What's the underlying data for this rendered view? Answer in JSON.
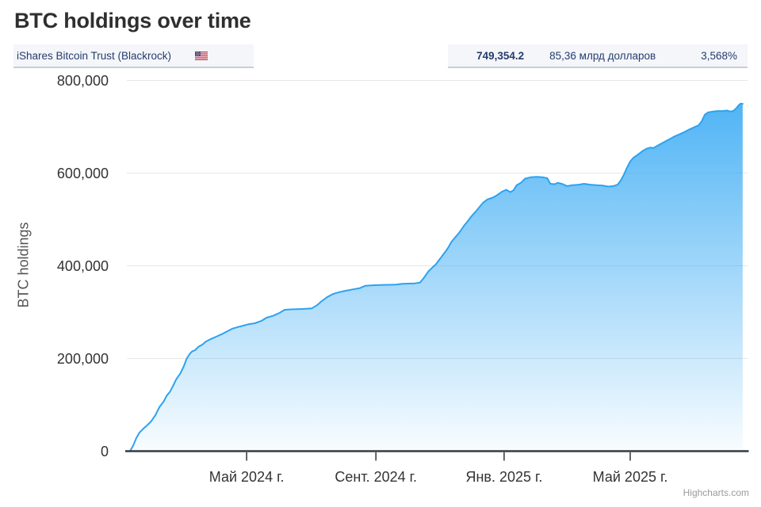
{
  "title": "BTC holdings over time",
  "header": {
    "fund_label": "iShares Bitcoin Trust (Blackrock)",
    "flag_icon": "us-flag-icon",
    "btc_value": "749,354.2",
    "aum_value": "85,36 млрд долларов",
    "pct_value": "3,568%"
  },
  "credit": "Highcharts.com",
  "colors": {
    "accent_line": "#2da2f0",
    "fill_top": "rgba(47,166,243,0.90)",
    "fill_bottom": "rgba(47,166,243,0.03)",
    "grid": "#e7e7e7",
    "axis": "#37393d",
    "tick": "#333333",
    "navy_text": "#263c6e"
  },
  "chart_data": {
    "type": "area",
    "title": "BTC holdings over time",
    "xlabel": "",
    "ylabel": "BTC holdings",
    "ylim": [
      0,
      800000
    ],
    "grid": true,
    "legend": false,
    "y_ticks": [
      {
        "value": 0,
        "label": "0"
      },
      {
        "value": 200000,
        "label": "200,000"
      },
      {
        "value": 400000,
        "label": "400,000"
      },
      {
        "value": 600000,
        "label": "600,000"
      },
      {
        "value": 800000,
        "label": "800,000"
      }
    ],
    "x_range": [
      "2024-01-08",
      "2025-08-21"
    ],
    "x_ticks": [
      {
        "date": "2024-05-01",
        "label": "Май 2024 г."
      },
      {
        "date": "2024-09-01",
        "label": "Сент. 2024 г."
      },
      {
        "date": "2025-01-01",
        "label": "Янв. 2025 г."
      },
      {
        "date": "2025-05-01",
        "label": "Май 2025 г."
      }
    ],
    "series": [
      {
        "name": "iShares Bitcoin Trust (Blackrock)",
        "last_value": 749354.2,
        "points": [
          [
            "2024-01-11",
            0
          ],
          [
            "2024-01-14",
            12000
          ],
          [
            "2024-01-17",
            28000
          ],
          [
            "2024-01-20",
            40000
          ],
          [
            "2024-01-24",
            49000
          ],
          [
            "2024-01-27",
            55000
          ],
          [
            "2024-01-31",
            64000
          ],
          [
            "2024-02-04",
            77000
          ],
          [
            "2024-02-08",
            95000
          ],
          [
            "2024-02-12",
            107000
          ],
          [
            "2024-02-15",
            120000
          ],
          [
            "2024-02-18",
            128000
          ],
          [
            "2024-02-21",
            141000
          ],
          [
            "2024-02-24",
            155000
          ],
          [
            "2024-02-28",
            168000
          ],
          [
            "2024-03-02",
            182000
          ],
          [
            "2024-03-05",
            200000
          ],
          [
            "2024-03-08",
            210000
          ],
          [
            "2024-03-10",
            215000
          ],
          [
            "2024-03-13",
            218000
          ],
          [
            "2024-03-16",
            225000
          ],
          [
            "2024-03-20",
            230000
          ],
          [
            "2024-03-23",
            236000
          ],
          [
            "2024-03-28",
            242000
          ],
          [
            "2024-04-02",
            247000
          ],
          [
            "2024-04-07",
            252000
          ],
          [
            "2024-04-12",
            258000
          ],
          [
            "2024-04-17",
            264000
          ],
          [
            "2024-04-23",
            268000
          ],
          [
            "2024-04-28",
            271000
          ],
          [
            "2024-05-03",
            274000
          ],
          [
            "2024-05-09",
            276000
          ],
          [
            "2024-05-15",
            281000
          ],
          [
            "2024-05-20",
            288000
          ],
          [
            "2024-05-26",
            292000
          ],
          [
            "2024-06-01",
            298000
          ],
          [
            "2024-06-06",
            305000
          ],
          [
            "2024-06-12",
            306000
          ],
          [
            "2024-06-18",
            306500
          ],
          [
            "2024-06-25",
            307000
          ],
          [
            "2024-07-02",
            308000
          ],
          [
            "2024-07-07",
            315000
          ],
          [
            "2024-07-11",
            323000
          ],
          [
            "2024-07-17",
            333000
          ],
          [
            "2024-07-22",
            339000
          ],
          [
            "2024-07-28",
            343000
          ],
          [
            "2024-08-03",
            346000
          ],
          [
            "2024-08-10",
            349000
          ],
          [
            "2024-08-17",
            352000
          ],
          [
            "2024-08-22",
            357000
          ],
          [
            "2024-08-29",
            358000
          ],
          [
            "2024-09-05",
            358500
          ],
          [
            "2024-09-13",
            359000
          ],
          [
            "2024-09-20",
            359500
          ],
          [
            "2024-09-26",
            361000
          ],
          [
            "2024-10-02",
            361500
          ],
          [
            "2024-10-08",
            362000
          ],
          [
            "2024-10-13",
            364000
          ],
          [
            "2024-10-17",
            375000
          ],
          [
            "2024-10-21",
            388000
          ],
          [
            "2024-10-25",
            397000
          ],
          [
            "2024-10-28",
            403000
          ],
          [
            "2024-10-31",
            412000
          ],
          [
            "2024-11-03",
            421000
          ],
          [
            "2024-11-06",
            430000
          ],
          [
            "2024-11-09",
            440000
          ],
          [
            "2024-11-12",
            452000
          ],
          [
            "2024-11-15",
            460000
          ],
          [
            "2024-11-18",
            468000
          ],
          [
            "2024-11-21",
            477000
          ],
          [
            "2024-11-24",
            487000
          ],
          [
            "2024-11-27",
            495000
          ],
          [
            "2024-12-01",
            507000
          ],
          [
            "2024-12-05",
            517000
          ],
          [
            "2024-12-09",
            528000
          ],
          [
            "2024-12-12",
            536000
          ],
          [
            "2024-12-16",
            543000
          ],
          [
            "2024-12-21",
            547000
          ],
          [
            "2024-12-25",
            552000
          ],
          [
            "2024-12-30",
            560000
          ],
          [
            "2025-01-03",
            564000
          ],
          [
            "2025-01-07",
            559000
          ],
          [
            "2025-01-10",
            563000
          ],
          [
            "2025-01-13",
            574000
          ],
          [
            "2025-01-17",
            579000
          ],
          [
            "2025-01-21",
            588000
          ],
          [
            "2025-01-26",
            591000
          ],
          [
            "2025-02-01",
            592000
          ],
          [
            "2025-02-07",
            591000
          ],
          [
            "2025-02-11",
            589000
          ],
          [
            "2025-02-14",
            577000
          ],
          [
            "2025-02-18",
            576000
          ],
          [
            "2025-02-21",
            579000
          ],
          [
            "2025-02-25",
            577000
          ],
          [
            "2025-03-02",
            572000
          ],
          [
            "2025-03-07",
            574000
          ],
          [
            "2025-03-13",
            575000
          ],
          [
            "2025-03-18",
            577000
          ],
          [
            "2025-03-24",
            575000
          ],
          [
            "2025-03-30",
            574000
          ],
          [
            "2025-04-05",
            573000
          ],
          [
            "2025-04-10",
            571000
          ],
          [
            "2025-04-15",
            572000
          ],
          [
            "2025-04-19",
            575000
          ],
          [
            "2025-04-22",
            584000
          ],
          [
            "2025-04-25",
            597000
          ],
          [
            "2025-04-28",
            612000
          ],
          [
            "2025-05-01",
            625000
          ],
          [
            "2025-05-04",
            633000
          ],
          [
            "2025-05-09",
            641000
          ],
          [
            "2025-05-13",
            648000
          ],
          [
            "2025-05-17",
            653000
          ],
          [
            "2025-05-20",
            655000
          ],
          [
            "2025-05-23",
            654000
          ],
          [
            "2025-05-26",
            658000
          ],
          [
            "2025-05-30",
            663000
          ],
          [
            "2025-06-03",
            668000
          ],
          [
            "2025-06-08",
            674000
          ],
          [
            "2025-06-12",
            679000
          ],
          [
            "2025-06-17",
            684000
          ],
          [
            "2025-06-22",
            689000
          ],
          [
            "2025-06-26",
            694000
          ],
          [
            "2025-07-01",
            699000
          ],
          [
            "2025-07-05",
            703000
          ],
          [
            "2025-07-08",
            712000
          ],
          [
            "2025-07-11",
            726000
          ],
          [
            "2025-07-14",
            731000
          ],
          [
            "2025-07-19",
            733000
          ],
          [
            "2025-07-23",
            734000
          ],
          [
            "2025-07-28",
            734000
          ],
          [
            "2025-08-01",
            735000
          ],
          [
            "2025-08-04",
            733000
          ],
          [
            "2025-08-07",
            734000
          ],
          [
            "2025-08-10",
            740000
          ],
          [
            "2025-08-12",
            746000
          ],
          [
            "2025-08-14",
            750000
          ],
          [
            "2025-08-16",
            749354.2
          ]
        ]
      }
    ]
  }
}
